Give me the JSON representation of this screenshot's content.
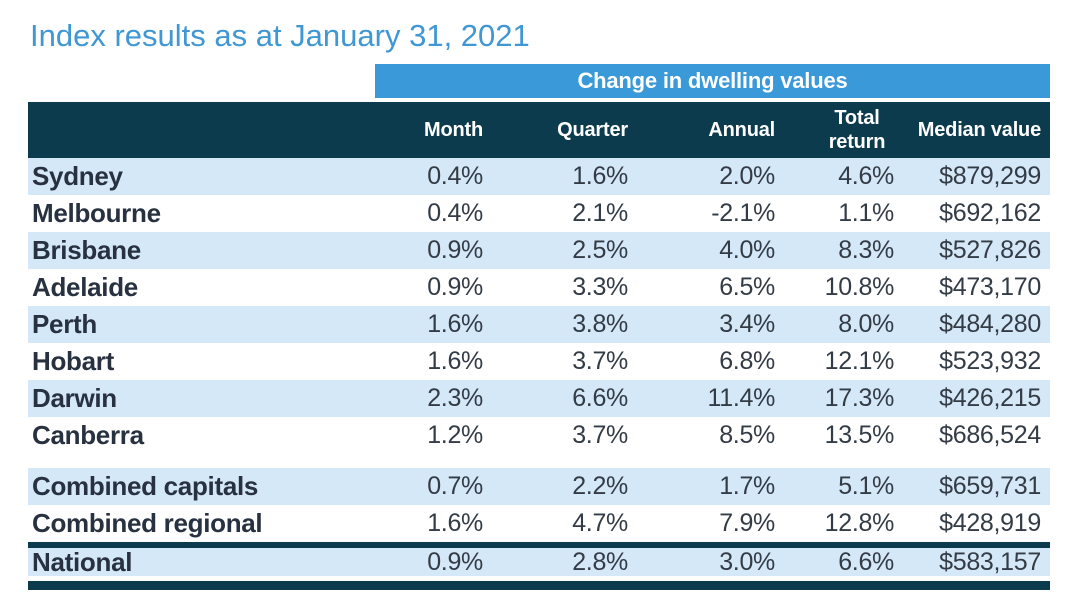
{
  "title": "Index results as at January 31, 2021",
  "colors": {
    "title_blue": "#3f97d4",
    "band_blue": "#3a99d8",
    "header_navy": "#0c3b4e",
    "row_shaded_blue": "#d5e8f7",
    "row_white": "#ffffff",
    "label_text": "#273140",
    "value_text": "#333c46",
    "header_text": "#ffffff"
  },
  "chart_data": {
    "type": "table",
    "title": "Index results as at January 31, 2021",
    "group_header": "Change in dwelling values",
    "group_header_spans_columns": [
      "Month",
      "Quarter",
      "Annual",
      "Total return",
      "Median value"
    ],
    "row_header_column": "",
    "columns": [
      "Month",
      "Quarter",
      "Annual",
      "Total return",
      "Median value"
    ],
    "rows": [
      [
        "Sydney",
        "0.4%",
        "1.6%",
        "2.0%",
        "4.6%",
        "$879,299"
      ],
      [
        "Melbourne",
        "0.4%",
        "2.1%",
        "-2.1%",
        "1.1%",
        "$692,162"
      ],
      [
        "Brisbane",
        "0.9%",
        "2.5%",
        "4.0%",
        "8.3%",
        "$527,826"
      ],
      [
        "Adelaide",
        "0.9%",
        "3.3%",
        "6.5%",
        "10.8%",
        "$473,170"
      ],
      [
        "Perth",
        "1.6%",
        "3.8%",
        "3.4%",
        "8.0%",
        "$484,280"
      ],
      [
        "Hobart",
        "1.6%",
        "3.7%",
        "6.8%",
        "12.1%",
        "$523,932"
      ],
      [
        "Darwin",
        "2.3%",
        "6.6%",
        "11.4%",
        "17.3%",
        "$426,215"
      ],
      [
        "Canberra",
        "1.2%",
        "3.7%",
        "8.5%",
        "13.5%",
        "$686,524"
      ],
      [
        "Combined capitals",
        "0.7%",
        "2.2%",
        "1.7%",
        "5.1%",
        "$659,731"
      ],
      [
        "Combined regional",
        "1.6%",
        "4.7%",
        "7.9%",
        "12.8%",
        "$428,919"
      ],
      [
        "National",
        "0.9%",
        "2.8%",
        "3.0%",
        "6.6%",
        "$583,157"
      ]
    ],
    "layout": {
      "shaded_row_indices": [
        0,
        2,
        4,
        6,
        8,
        10
      ],
      "section_gap_after_row": "Canberra",
      "thick_rule_above_row": "National",
      "thick_rule_below_row": "National",
      "value_alignment": "right",
      "grid": "off"
    }
  }
}
